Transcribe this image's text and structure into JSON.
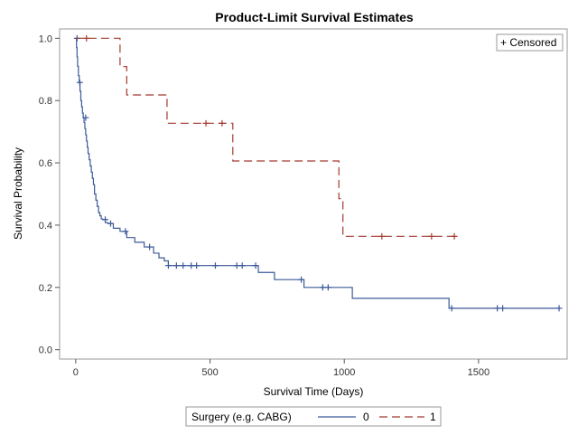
{
  "chart_data": {
    "type": "line",
    "title": "Product-Limit Survival Estimates",
    "xlabel": "Survival Time (Days)",
    "ylabel": "Survival Probability",
    "xlim": [
      -60,
      1830
    ],
    "ylim": [
      -0.03,
      1.03
    ],
    "x_ticks": [
      0,
      500,
      1000,
      1500
    ],
    "x_tick_labels": [
      "0",
      "500",
      "1000",
      "1500"
    ],
    "y_ticks": [
      0.0,
      0.2,
      0.4,
      0.6,
      0.8,
      1.0
    ],
    "y_tick_labels": [
      "0.0",
      "0.2",
      "0.4",
      "0.6",
      "0.8",
      "1.0"
    ],
    "step": true,
    "censored_legend": "+ Censored",
    "censored_legend_position": "top-right",
    "legend_title": "Surgery (e.g. CABG)",
    "legend_position": "bottom",
    "grid": false,
    "series": [
      {
        "name": "0",
        "color": "#3d5a99",
        "dash": "solid",
        "x": [
          0,
          3,
          5,
          7,
          10,
          13,
          16,
          19,
          22,
          25,
          28,
          31,
          34,
          37,
          40,
          43,
          46,
          50,
          54,
          58,
          62,
          66,
          70,
          75,
          80,
          85,
          90,
          95,
          100,
          110,
          120,
          140,
          165,
          190,
          220,
          255,
          290,
          310,
          330,
          345,
          680,
          740,
          850,
          1030,
          1390
        ],
        "y": [
          1.0,
          0.97,
          0.94,
          0.91,
          0.88,
          0.86,
          0.83,
          0.8,
          0.78,
          0.76,
          0.745,
          0.73,
          0.71,
          0.69,
          0.67,
          0.65,
          0.63,
          0.61,
          0.59,
          0.57,
          0.55,
          0.53,
          0.5,
          0.48,
          0.46,
          0.44,
          0.43,
          0.42,
          0.418,
          0.408,
          0.405,
          0.39,
          0.38,
          0.36,
          0.345,
          0.33,
          0.31,
          0.295,
          0.285,
          0.27,
          0.248,
          0.225,
          0.2,
          0.165,
          0.133
        ],
        "censored_x": [
          5,
          15,
          37,
          110,
          130,
          185,
          275,
          345,
          375,
          400,
          430,
          450,
          520,
          600,
          620,
          670,
          840,
          920,
          940,
          1400,
          1570,
          1590,
          1800
        ],
        "censored_y": [
          1.0,
          0.858,
          0.745,
          0.418,
          0.405,
          0.38,
          0.33,
          0.27,
          0.27,
          0.27,
          0.27,
          0.27,
          0.27,
          0.27,
          0.27,
          0.27,
          0.225,
          0.2,
          0.2,
          0.133,
          0.133,
          0.133,
          0.133
        ]
      },
      {
        "name": "1",
        "color": "#a23a2e",
        "dash": "dashed",
        "x": [
          0,
          165,
          190,
          340,
          585,
          980,
          995
        ],
        "y": [
          1.0,
          0.909,
          0.818,
          0.727,
          0.606,
          0.485,
          0.364
        ],
        "censored_x": [
          40,
          485,
          545,
          1140,
          1325,
          1410
        ],
        "censored_y": [
          1.0,
          0.727,
          0.727,
          0.364,
          0.364,
          0.364
        ],
        "end_x": 1410
      }
    ]
  }
}
